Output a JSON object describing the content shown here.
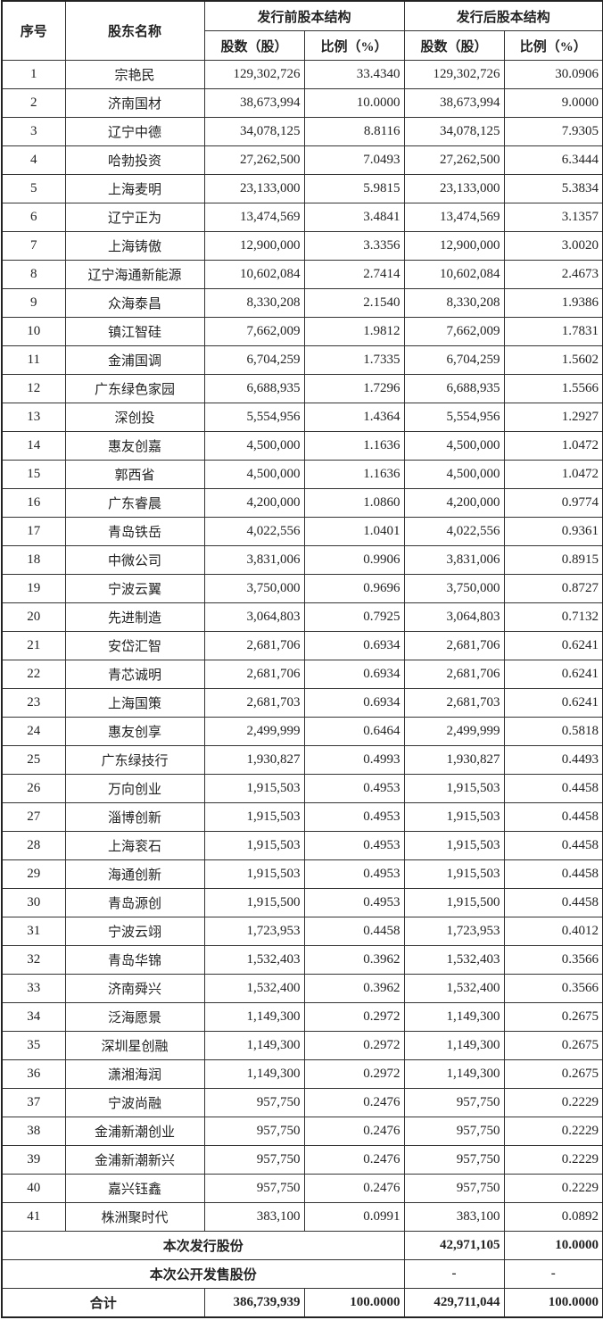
{
  "header": {
    "no": "序号",
    "name": "股东名称",
    "pre_group": "发行前股本结构",
    "post_group": "发行后股本结构",
    "shares": "股数（股）",
    "pct": "比例（%）"
  },
  "rows": [
    [
      "1",
      "宗艳民",
      "129,302,726",
      "33.4340",
      "129,302,726",
      "30.0906"
    ],
    [
      "2",
      "济南国材",
      "38,673,994",
      "10.0000",
      "38,673,994",
      "9.0000"
    ],
    [
      "3",
      "辽宁中德",
      "34,078,125",
      "8.8116",
      "34,078,125",
      "7.9305"
    ],
    [
      "4",
      "哈勃投资",
      "27,262,500",
      "7.0493",
      "27,262,500",
      "6.3444"
    ],
    [
      "5",
      "上海麦明",
      "23,133,000",
      "5.9815",
      "23,133,000",
      "5.3834"
    ],
    [
      "6",
      "辽宁正为",
      "13,474,569",
      "3.4841",
      "13,474,569",
      "3.1357"
    ],
    [
      "7",
      "上海铸傲",
      "12,900,000",
      "3.3356",
      "12,900,000",
      "3.0020"
    ],
    [
      "8",
      "辽宁海通新能源",
      "10,602,084",
      "2.7414",
      "10,602,084",
      "2.4673"
    ],
    [
      "9",
      "众海泰昌",
      "8,330,208",
      "2.1540",
      "8,330,208",
      "1.9386"
    ],
    [
      "10",
      "镇江智硅",
      "7,662,009",
      "1.9812",
      "7,662,009",
      "1.7831"
    ],
    [
      "11",
      "金浦国调",
      "6,704,259",
      "1.7335",
      "6,704,259",
      "1.5602"
    ],
    [
      "12",
      "广东绿色家园",
      "6,688,935",
      "1.7296",
      "6,688,935",
      "1.5566"
    ],
    [
      "13",
      "深创投",
      "5,554,956",
      "1.4364",
      "5,554,956",
      "1.2927"
    ],
    [
      "14",
      "惠友创嘉",
      "4,500,000",
      "1.1636",
      "4,500,000",
      "1.0472"
    ],
    [
      "15",
      "郭西省",
      "4,500,000",
      "1.1636",
      "4,500,000",
      "1.0472"
    ],
    [
      "16",
      "广东睿晨",
      "4,200,000",
      "1.0860",
      "4,200,000",
      "0.9774"
    ],
    [
      "17",
      "青岛铁岳",
      "4,022,556",
      "1.0401",
      "4,022,556",
      "0.9361"
    ],
    [
      "18",
      "中微公司",
      "3,831,006",
      "0.9906",
      "3,831,006",
      "0.8915"
    ],
    [
      "19",
      "宁波云翼",
      "3,750,000",
      "0.9696",
      "3,750,000",
      "0.8727"
    ],
    [
      "20",
      "先进制造",
      "3,064,803",
      "0.7925",
      "3,064,803",
      "0.7132"
    ],
    [
      "21",
      "安岱汇智",
      "2,681,706",
      "0.6934",
      "2,681,706",
      "0.6241"
    ],
    [
      "22",
      "青芯诚明",
      "2,681,706",
      "0.6934",
      "2,681,706",
      "0.6241"
    ],
    [
      "23",
      "上海国策",
      "2,681,703",
      "0.6934",
      "2,681,703",
      "0.6241"
    ],
    [
      "24",
      "惠友创享",
      "2,499,999",
      "0.6464",
      "2,499,999",
      "0.5818"
    ],
    [
      "25",
      "广东绿技行",
      "1,930,827",
      "0.4993",
      "1,930,827",
      "0.4493"
    ],
    [
      "26",
      "万向创业",
      "1,915,503",
      "0.4953",
      "1,915,503",
      "0.4458"
    ],
    [
      "27",
      "淄博创新",
      "1,915,503",
      "0.4953",
      "1,915,503",
      "0.4458"
    ],
    [
      "28",
      "上海衮石",
      "1,915,503",
      "0.4953",
      "1,915,503",
      "0.4458"
    ],
    [
      "29",
      "海通创新",
      "1,915,503",
      "0.4953",
      "1,915,503",
      "0.4458"
    ],
    [
      "30",
      "青岛源创",
      "1,915,500",
      "0.4953",
      "1,915,500",
      "0.4458"
    ],
    [
      "31",
      "宁波云翊",
      "1,723,953",
      "0.4458",
      "1,723,953",
      "0.4012"
    ],
    [
      "32",
      "青岛华锦",
      "1,532,403",
      "0.3962",
      "1,532,403",
      "0.3566"
    ],
    [
      "33",
      "济南舜兴",
      "1,532,400",
      "0.3962",
      "1,532,400",
      "0.3566"
    ],
    [
      "34",
      "泛海愿景",
      "1,149,300",
      "0.2972",
      "1,149,300",
      "0.2675"
    ],
    [
      "35",
      "深圳星创融",
      "1,149,300",
      "0.2972",
      "1,149,300",
      "0.2675"
    ],
    [
      "36",
      "潇湘海润",
      "1,149,300",
      "0.2972",
      "1,149,300",
      "0.2675"
    ],
    [
      "37",
      "宁波尚融",
      "957,750",
      "0.2476",
      "957,750",
      "0.2229"
    ],
    [
      "38",
      "金浦新潮创业",
      "957,750",
      "0.2476",
      "957,750",
      "0.2229"
    ],
    [
      "39",
      "金浦新潮新兴",
      "957,750",
      "0.2476",
      "957,750",
      "0.2229"
    ],
    [
      "40",
      "嘉兴钰鑫",
      "957,750",
      "0.2476",
      "957,750",
      "0.2229"
    ],
    [
      "41",
      "株洲聚时代",
      "383,100",
      "0.0991",
      "383,100",
      "0.0892"
    ]
  ],
  "issuance": {
    "label": "本次发行股份",
    "post_shares": "42,971,105",
    "post_pct": "10.0000"
  },
  "public_sale": {
    "label": "本次公开发售股份",
    "post_shares": "-",
    "post_pct": "-"
  },
  "total": {
    "label": "合计",
    "pre_shares": "386,739,939",
    "pre_pct": "100.0000",
    "post_shares": "429,711,044",
    "post_pct": "100.0000"
  }
}
